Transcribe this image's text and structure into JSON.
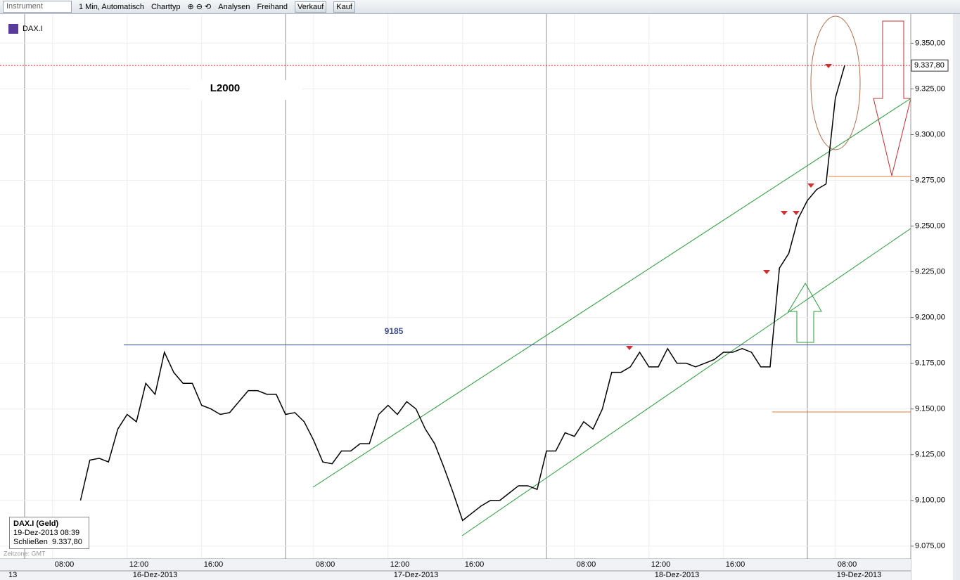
{
  "toolbar": {
    "instrument": "Instrument",
    "interval": "1 Min,  Automatisch",
    "chart_type": "Charttyp",
    "analyses": "Analysen",
    "freehand": "Freihand",
    "sell": "Verkauf",
    "buy": "Kauf"
  },
  "symbol": "DAX.I",
  "timezone": "Zeitzone: GMT",
  "corner": "13",
  "info_box": {
    "title": "DAX.I (Geld)",
    "datetime": "19-Dez-2013 08:39",
    "close_label": "Schließen",
    "close_value": "9.337,80"
  },
  "chart_data": {
    "type": "line",
    "annotations": {
      "note": "L2000",
      "level": 9185
    },
    "last_price": {
      "value": 9337.8,
      "label": "9.337,80"
    },
    "x_groups": [
      "16-Dez-2013",
      "17-Dez-2013",
      "18-Dez-2013",
      "19-Dez-2013"
    ],
    "categories": [
      null,
      null,
      null,
      "08:00",
      null,
      null,
      null,
      null,
      null,
      null,
      null,
      "12:00",
      null,
      null,
      null,
      null,
      null,
      null,
      null,
      "16:00",
      null,
      null,
      null,
      null,
      null,
      null,
      null,
      null,
      null,
      null,
      null,
      "08:00",
      null,
      null,
      null,
      null,
      null,
      null,
      null,
      "12:00",
      null,
      null,
      null,
      null,
      null,
      null,
      null,
      "16:00",
      null,
      null,
      null,
      null,
      null,
      null,
      null,
      null,
      null,
      null,
      null,
      "08:00",
      null,
      null,
      null,
      null,
      null,
      null,
      null,
      "12:00",
      null,
      null,
      null,
      null,
      null,
      null,
      null,
      "16:00",
      null,
      null,
      null,
      null,
      null,
      null,
      null,
      null,
      null,
      null,
      null,
      "08:00",
      null
    ],
    "series": [
      {
        "name": "DAX.I",
        "color": "#000000",
        "values": [
          null,
          null,
          null,
          null,
          null,
          null,
          9100,
          9122,
          9123,
          9121,
          9139,
          9147,
          9143,
          9164,
          9158,
          9181,
          9170,
          9164,
          9164,
          9152,
          9150,
          9147,
          9148,
          9154,
          9160,
          9160,
          9158,
          9158,
          9147,
          9148,
          9143,
          9133,
          9121,
          9120,
          9127,
          9127,
          9131,
          9131,
          9147,
          9152,
          9147,
          9154,
          9150,
          9139,
          9131,
          9118,
          9104,
          9089,
          9093,
          9097,
          9100,
          9100,
          9104,
          9108,
          9108,
          9106,
          9127,
          9127,
          9137,
          9135,
          9143,
          9139,
          9150,
          9170,
          9170,
          9173,
          9181,
          9173,
          9173,
          9183,
          9175,
          9175,
          9173,
          9175,
          9177,
          9181,
          9181,
          9183,
          9181,
          9173,
          9173,
          9227,
          9235,
          9254,
          9264,
          9270,
          9273,
          9320,
          9337.8
        ]
      }
    ],
    "ylim": [
      9068,
      9364
    ],
    "yticks": [
      {
        "value": 9075,
        "label": "9.075,00"
      },
      {
        "value": 9100,
        "label": "9.100,00"
      },
      {
        "value": 9125,
        "label": "9.125,00"
      },
      {
        "value": 9150,
        "label": "9.150,00"
      },
      {
        "value": 9175,
        "label": "9.175,00"
      },
      {
        "value": 9200,
        "label": "9.200,00"
      },
      {
        "value": 9225,
        "label": "9.225,00"
      },
      {
        "value": 9250,
        "label": "9.250,00"
      },
      {
        "value": 9275,
        "label": "9.275,00"
      },
      {
        "value": 9300,
        "label": "9.300,00"
      },
      {
        "value": 9325,
        "label": "9.325,00"
      },
      {
        "value": 9350,
        "label": "9.350,00"
      }
    ],
    "grid": true
  }
}
